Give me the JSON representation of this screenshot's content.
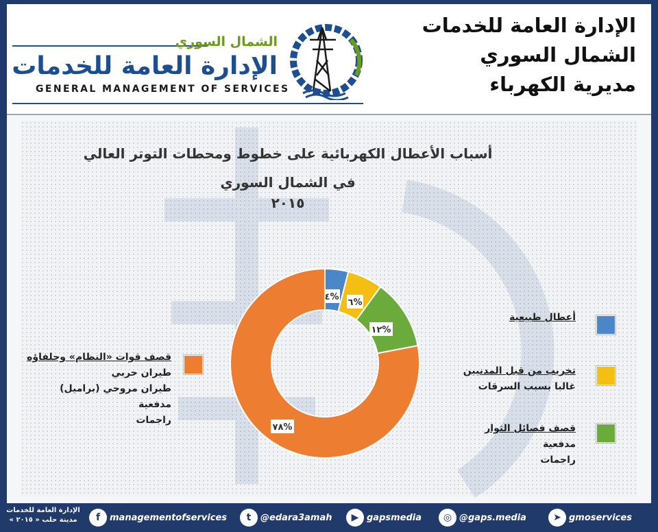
{
  "header": {
    "lines": [
      "الإدارة العامة للخدمات",
      "الشمال السوري",
      "مديرية الكهرباء"
    ],
    "logo": {
      "ar_small": "الشمال السوري",
      "ar_big": "الإدارة العامة للخدمات",
      "en": "GENERAL MANAGEMENT OF SERVICES"
    }
  },
  "chart_data": {
    "type": "pie",
    "variant": "donut",
    "title_lines": [
      "أسباب الأعطال الكهربائية على خطوط ومحطات التوتر العالي",
      "في الشمال السوري",
      "٢٠١٥"
    ],
    "slices": [
      {
        "label": "أعطال طبيعية",
        "value": 4,
        "display": "٤%",
        "color": "#4a86c8"
      },
      {
        "label": "تخريب من قبل المدنيين",
        "value": 6,
        "display": "٦%",
        "color": "#f4bf12"
      },
      {
        "label": "قصف فصائل الثوار",
        "value": 12,
        "display": "١٢%",
        "color": "#6aab3c"
      },
      {
        "label": "قصف قوات «النظام» وحلفاؤه",
        "value": 78,
        "display": "٧٨%",
        "color": "#ed7d31"
      }
    ],
    "legend": [
      {
        "lines": [
          "أعطال طبيعية"
        ],
        "color": "#4a86c8"
      },
      {
        "lines": [
          "تخريب من قبل المدنيين",
          "غالبا بسبب السرقات"
        ],
        "color": "#f4bf12"
      },
      {
        "lines": [
          "قصف فصائل الثوار",
          "مدفعية",
          "راجمات"
        ],
        "color": "#6aab3c"
      },
      {
        "lines": [
          "قصف قوات «النظام» وحلفاؤه",
          "طيران حربي",
          "طيران مروحي (براميل)",
          "مدفعية",
          "راجمات"
        ],
        "color": "#ed7d31"
      }
    ]
  },
  "footer": {
    "org_lines": [
      "الإدارة العامة للخدمات",
      "مدينة حلب « ٢٠١٥ »"
    ],
    "social": [
      {
        "icon": "facebook-icon",
        "glyph": "f",
        "handle": "managementofservices"
      },
      {
        "icon": "twitter-icon",
        "glyph": "t",
        "handle": "@edara3amah"
      },
      {
        "icon": "youtube-icon",
        "glyph": "▶",
        "handle": "gapsmedia"
      },
      {
        "icon": "instagram-icon",
        "glyph": "◎",
        "handle": "@gaps.media"
      },
      {
        "icon": "telegram-icon",
        "glyph": "➤",
        "handle": "gmoservices"
      }
    ]
  }
}
